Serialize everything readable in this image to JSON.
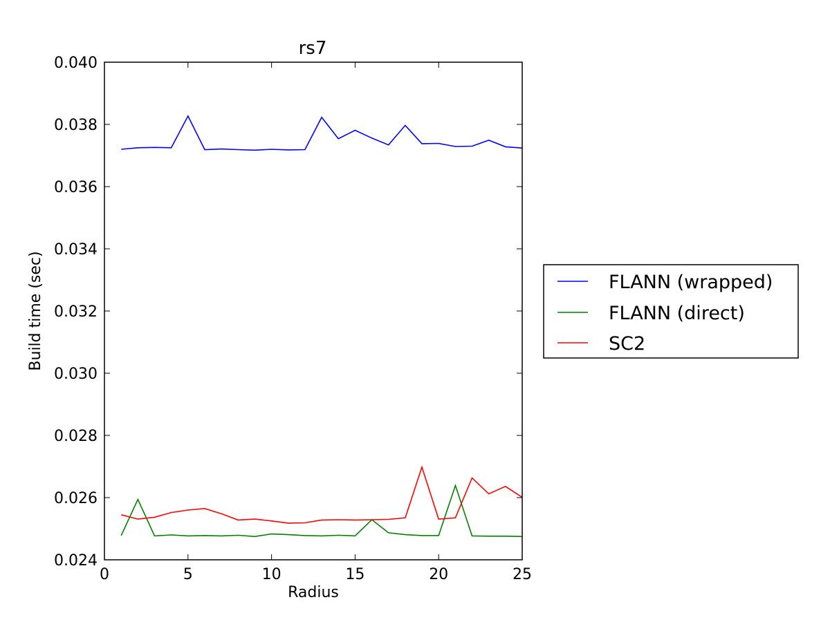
{
  "chart_data": {
    "type": "line",
    "title": "rs7",
    "xlabel": "Radius",
    "ylabel": "Build time (sec)",
    "xlim": [
      0,
      25
    ],
    "ylim": [
      0.024,
      0.04
    ],
    "xticks": [
      0,
      5,
      10,
      15,
      20,
      25
    ],
    "yticks": [
      0.024,
      0.026,
      0.028,
      0.03,
      0.032,
      0.034,
      0.036,
      0.038,
      0.04
    ],
    "xtick_labels": [
      "0",
      "5",
      "10",
      "15",
      "20",
      "25"
    ],
    "ytick_labels": [
      "0.024",
      "0.026",
      "0.028",
      "0.030",
      "0.032",
      "0.034",
      "0.036",
      "0.038",
      "0.040"
    ],
    "grid": false,
    "legend_position": "outside-right",
    "x": [
      1,
      2,
      3,
      4,
      5,
      6,
      7,
      8,
      9,
      10,
      11,
      12,
      13,
      14,
      15,
      16,
      17,
      18,
      19,
      20,
      21,
      22,
      23,
      24,
      25
    ],
    "series": [
      {
        "name": "FLANN (wrapped)",
        "color": "#0000ff",
        "values": [
          0.0372,
          0.03725,
          0.03726,
          0.03725,
          0.03827,
          0.03719,
          0.03721,
          0.03719,
          0.03717,
          0.0372,
          0.03718,
          0.03719,
          0.03823,
          0.03754,
          0.03781,
          0.03756,
          0.03734,
          0.03797,
          0.03738,
          0.03739,
          0.03729,
          0.0373,
          0.03749,
          0.03728,
          0.03724
        ]
      },
      {
        "name": "FLANN (direct)",
        "color": "#008000",
        "values": [
          0.02478,
          0.02594,
          0.02477,
          0.0248,
          0.02477,
          0.02478,
          0.02477,
          0.02479,
          0.02475,
          0.02483,
          0.02481,
          0.02478,
          0.02477,
          0.02479,
          0.02477,
          0.02529,
          0.02487,
          0.02481,
          0.02478,
          0.02478,
          0.02639,
          0.02477,
          0.02476,
          0.02476,
          0.02475
        ]
      },
      {
        "name": "SC2",
        "color": "#ff0000",
        "values": [
          0.02545,
          0.02531,
          0.02537,
          0.02552,
          0.0256,
          0.02565,
          0.02548,
          0.02528,
          0.02531,
          0.02525,
          0.02518,
          0.02519,
          0.02528,
          0.02529,
          0.02528,
          0.02529,
          0.0253,
          0.02535,
          0.02698,
          0.02531,
          0.02535,
          0.02663,
          0.02612,
          0.02636,
          0.02601
        ]
      }
    ]
  }
}
